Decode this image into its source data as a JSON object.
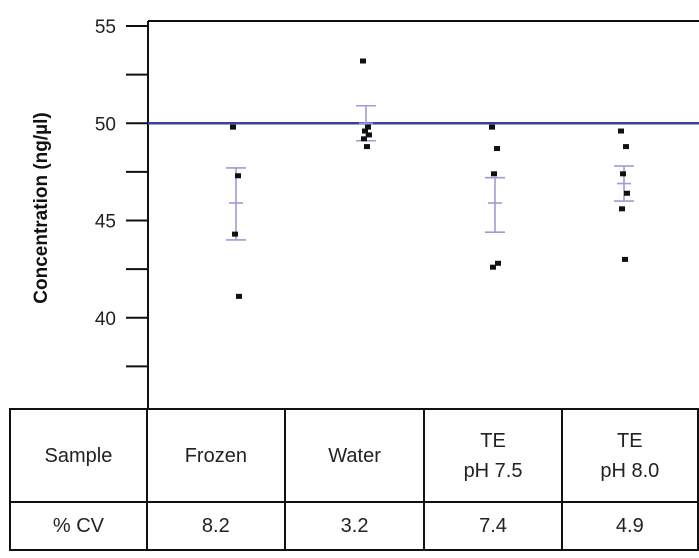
{
  "chart_data": {
    "type": "scatter",
    "ylabel": "Concentration (ng/µl)",
    "ylim": [
      35,
      55
    ],
    "yticks": [
      40,
      45,
      50,
      55
    ],
    "reference_line": {
      "y": 50,
      "color": "#3c3f9e"
    },
    "categories": [
      "Frozen",
      "Water",
      "TE pH 7.5",
      "TE pH 8.0"
    ],
    "points": [
      [
        49.8,
        47.3,
        44.3,
        41.1
      ],
      [
        53.2,
        49.8,
        49.6,
        49.4,
        49.2,
        48.8
      ],
      [
        49.8,
        48.7,
        47.4,
        42.8,
        42.6
      ],
      [
        49.6,
        48.8,
        47.4,
        46.4,
        45.6,
        43.0
      ]
    ],
    "means": [
      45.9,
      50.0,
      45.9,
      46.9
    ],
    "error_low": [
      44.0,
      49.1,
      44.4,
      46.0
    ],
    "error_high": [
      47.7,
      50.9,
      47.2,
      47.8
    ],
    "point_color": "#111111",
    "errorbar_color": "#9e9bd6"
  },
  "table": {
    "rows": [
      {
        "header": "Sample",
        "cells": [
          [
            "Frozen"
          ],
          [
            "Water"
          ],
          [
            "TE",
            "pH 7.5"
          ],
          [
            "TE",
            "pH 8.0"
          ]
        ]
      },
      {
        "header": "% CV",
        "cells": [
          [
            "8.2"
          ],
          [
            "3.2"
          ],
          [
            "7.4"
          ],
          [
            "4.9"
          ]
        ]
      }
    ]
  }
}
